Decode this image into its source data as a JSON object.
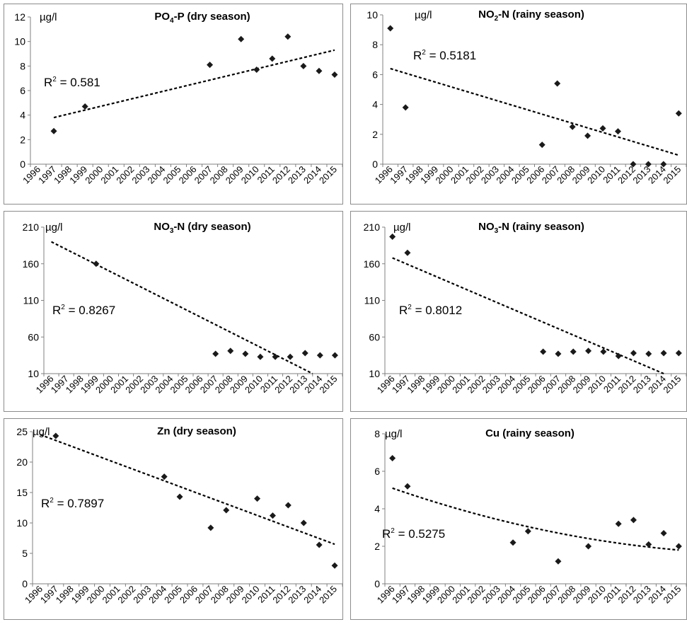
{
  "colors": {
    "marker": "#1a1a1a",
    "trendline": "#000000",
    "axis": "#808080",
    "border": "#8c8c8c"
  },
  "chart_data": [
    {
      "type": "scatter",
      "title": {
        "pre": "PO",
        "sub": "4",
        "post": "-P (dry season)"
      },
      "unit": "µg/l",
      "ylim": [
        0,
        12
      ],
      "yticks": [
        0,
        2,
        4,
        6,
        8,
        10,
        12
      ],
      "x_ticks": [
        "1996",
        "1997",
        "1998",
        "1999",
        "2000",
        "2001",
        "2002",
        "2003",
        "2004",
        "2005",
        "2006",
        "2007",
        "2008",
        "2009",
        "2010",
        "2011",
        "2012",
        "2013",
        "2014",
        "2015"
      ],
      "x": [
        1997,
        1999,
        2007,
        2009,
        2010,
        2011,
        2012,
        2013,
        2014,
        2015
      ],
      "y": [
        2.7,
        4.7,
        8.1,
        10.2,
        7.7,
        8.6,
        10.4,
        8.0,
        7.6,
        7.3
      ],
      "trend": {
        "x": [
          1997,
          2015
        ],
        "y": [
          3.8,
          9.3
        ]
      },
      "r2_label": {
        "pre": "R",
        "sup": "2",
        "post": " = 0.581"
      },
      "grid": false
    },
    {
      "type": "scatter",
      "title": {
        "pre": "NO",
        "sub": "2",
        "post": "-N (rainy season)"
      },
      "unit": "µg/l",
      "ylim": [
        0,
        10
      ],
      "yticks": [
        0,
        2,
        4,
        6,
        8,
        10
      ],
      "x_ticks": [
        "1996",
        "1997",
        "1998",
        "1999",
        "2000",
        "2001",
        "2002",
        "2003",
        "2004",
        "2005",
        "2006",
        "2007",
        "2008",
        "2009",
        "2010",
        "2011",
        "2012",
        "2013",
        "2014",
        "2015"
      ],
      "x": [
        1996,
        1997,
        2006,
        2007,
        2008,
        2009,
        2010,
        2011,
        2012,
        2013,
        2014,
        2015
      ],
      "y": [
        9.1,
        3.8,
        1.3,
        5.4,
        2.5,
        1.9,
        2.4,
        2.2,
        0.0,
        0.0,
        0.0,
        3.4
      ],
      "trend": {
        "x": [
          1996,
          2015
        ],
        "y": [
          6.4,
          0.6
        ]
      },
      "r2_label": {
        "pre": "R",
        "sup": "2",
        "post": " = 0.5181"
      },
      "grid": false
    },
    {
      "type": "scatter",
      "title": {
        "pre": "NO",
        "sub": "3",
        "post": "-N (dry season)"
      },
      "unit": "µg/l",
      "ylim": [
        10,
        210
      ],
      "yticks": [
        10,
        60,
        110,
        160,
        210
      ],
      "x_ticks": [
        "1996",
        "1997",
        "1998",
        "1999",
        "2000",
        "2001",
        "2002",
        "2003",
        "2004",
        "2005",
        "2006",
        "2007",
        "2008",
        "2009",
        "2010",
        "2011",
        "2012",
        "2013",
        "2014",
        "2015"
      ],
      "x": [
        1999,
        2007,
        2008,
        2009,
        2010,
        2011,
        2012,
        2013,
        2014,
        2015
      ],
      "y": [
        160,
        37,
        41,
        37,
        33,
        33,
        33,
        38,
        35,
        35
      ],
      "trend": {
        "x": [
          1996,
          2013.5
        ],
        "y": [
          190,
          10
        ]
      },
      "r2_label": {
        "pre": "R",
        "sup": "2",
        "post": " = 0.8267"
      },
      "grid": false
    },
    {
      "type": "scatter",
      "title": {
        "pre": "NO",
        "sub": "3",
        "post": "-N (rainy season)"
      },
      "unit": "µg/l",
      "ylim": [
        10,
        210
      ],
      "yticks": [
        10,
        60,
        110,
        160,
        210
      ],
      "x_ticks": [
        "1996",
        "1997",
        "1998",
        "1999",
        "2000",
        "2001",
        "2002",
        "2003",
        "2004",
        "2005",
        "2006",
        "2007",
        "2008",
        "2009",
        "2010",
        "2011",
        "2012",
        "2013",
        "2014",
        "2015"
      ],
      "x": [
        1996,
        1997,
        2006,
        2007,
        2008,
        2009,
        2010,
        2011,
        2012,
        2013,
        2014,
        2015
      ],
      "y": [
        197,
        175,
        40,
        37,
        40,
        41,
        40,
        34,
        38,
        37,
        38,
        38
      ],
      "trend": {
        "x": [
          1996,
          2014
        ],
        "y": [
          168,
          10
        ]
      },
      "r2_label": {
        "pre": "R",
        "sup": "2",
        "post": " = 0.8012"
      },
      "grid": false
    },
    {
      "type": "scatter",
      "title": {
        "pre": "Zn (dry season)",
        "sub": "",
        "post": ""
      },
      "unit": "µg/l",
      "ylim": [
        0,
        25
      ],
      "yticks": [
        0,
        5,
        10,
        15,
        20,
        25
      ],
      "x_ticks": [
        "1996",
        "1997",
        "1998",
        "1999",
        "2000",
        "2001",
        "2002",
        "2003",
        "2004",
        "2005",
        "2006",
        "2007",
        "2008",
        "2009",
        "2010",
        "2011",
        "2012",
        "2013",
        "2014",
        "2015"
      ],
      "x": [
        1997,
        2004,
        2005,
        2007,
        2008,
        2010,
        2011,
        2012,
        2013,
        2014,
        2015
      ],
      "y": [
        24.3,
        17.6,
        14.3,
        9.2,
        12.1,
        14.0,
        11.2,
        12.9,
        10.0,
        6.4,
        3.0
      ],
      "trend": {
        "x": [
          1996,
          2015
        ],
        "y": [
          24.5,
          6.5
        ]
      },
      "r2_label": {
        "pre": "R",
        "sup": "2",
        "post": " = 0.7897"
      },
      "grid": false
    },
    {
      "type": "scatter",
      "title": {
        "pre": "Cu (rainy season)",
        "sub": "",
        "post": ""
      },
      "unit": "µg/l",
      "ylim": [
        0,
        8
      ],
      "yticks": [
        0,
        2,
        4,
        6,
        8
      ],
      "x_ticks": [
        "1996",
        "1997",
        "1998",
        "1999",
        "2000",
        "2001",
        "2002",
        "2003",
        "2004",
        "2005",
        "2006",
        "2007",
        "2008",
        "2009",
        "2010",
        "2011",
        "2012",
        "2013",
        "2014",
        "2015"
      ],
      "x": [
        1996,
        1997,
        2004,
        2005,
        2007,
        2009,
        2011,
        2012,
        2013,
        2014,
        2015
      ],
      "y": [
        6.7,
        5.2,
        2.2,
        2.8,
        1.2,
        2.0,
        3.2,
        3.4,
        2.1,
        2.7,
        2.0
      ],
      "trend": {
        "x": [
          1996,
          2015
        ],
        "y": [
          5.1,
          1.8
        ],
        "curve": 0.3
      },
      "r2_label": {
        "pre": "R",
        "sup": "2",
        "post": " = 0.5275"
      },
      "grid": false
    }
  ]
}
